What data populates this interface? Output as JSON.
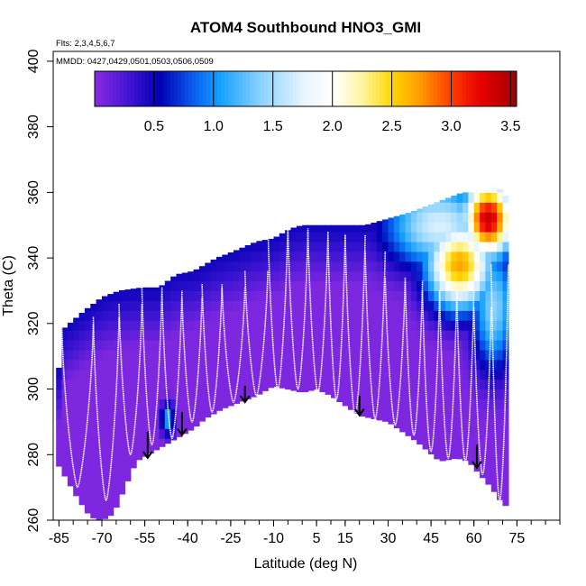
{
  "chart_data": {
    "type": "heatmap",
    "title": "ATOM4 Southbound HNO3_GMI",
    "subtitle_flights": "Flts: 2,3,4,5,6,7",
    "subtitle_dates": "MMDD: 0427,0429,0501,0503,0506,0509",
    "xlabel": "Latitude (deg N)",
    "ylabel": "Theta (C)",
    "xlim": [
      -87,
      90
    ],
    "ylim": [
      260,
      403
    ],
    "x_ticks": [
      -85,
      -70,
      -55,
      -40,
      -25,
      -10,
      5,
      15,
      30,
      45,
      60,
      75
    ],
    "x_tick_labels": [
      "-85",
      "-70",
      "-55",
      "-40",
      "-25",
      "-10",
      "5",
      "15",
      "30",
      "45",
      "60",
      "75"
    ],
    "x_minor_step": 5,
    "y_ticks": [
      260,
      280,
      300,
      320,
      340,
      360,
      380,
      400
    ],
    "y_tick_labels": [
      "260",
      "280",
      "300",
      "320",
      "340",
      "360",
      "380",
      "400"
    ],
    "colorbar": {
      "range": [
        0,
        3.55
      ],
      "ticks": [
        0.5,
        1.0,
        1.5,
        2.0,
        2.5,
        3.0,
        3.5
      ],
      "tick_labels": [
        "0.5",
        "1.0",
        "1.5",
        "2.0",
        "2.5",
        "3.0",
        "3.5"
      ],
      "stops": [
        {
          "v": 0.0,
          "color": "#8a2be2"
        },
        {
          "v": 0.3,
          "color": "#3c14d2"
        },
        {
          "v": 0.55,
          "color": "#0000b4"
        },
        {
          "v": 0.85,
          "color": "#0a64f0"
        },
        {
          "v": 1.05,
          "color": "#14a0ff"
        },
        {
          "v": 1.4,
          "color": "#8cd2ff"
        },
        {
          "v": 1.75,
          "color": "#e6f5ff"
        },
        {
          "v": 2.0,
          "color": "#ffffff"
        },
        {
          "v": 2.25,
          "color": "#fff5a0"
        },
        {
          "v": 2.5,
          "color": "#ffd700"
        },
        {
          "v": 2.75,
          "color": "#ff9600"
        },
        {
          "v": 3.0,
          "color": "#ff3c00"
        },
        {
          "v": 3.25,
          "color": "#e60000"
        },
        {
          "v": 3.55,
          "color": "#a00000"
        }
      ]
    },
    "top_boundary": [
      [
        -86,
        295
      ],
      [
        -84,
        318
      ],
      [
        -80,
        321
      ],
      [
        -76,
        324
      ],
      [
        -70,
        328
      ],
      [
        -64,
        330
      ],
      [
        -56,
        331
      ],
      [
        -50,
        331
      ],
      [
        -44,
        335
      ],
      [
        -38,
        336
      ],
      [
        -30,
        340
      ],
      [
        -24,
        342
      ],
      [
        -16,
        345
      ],
      [
        -10,
        346
      ],
      [
        -4,
        349
      ],
      [
        0,
        350
      ],
      [
        6,
        350
      ],
      [
        14,
        350
      ],
      [
        22,
        350
      ],
      [
        30,
        352
      ],
      [
        38,
        354
      ],
      [
        44,
        356
      ],
      [
        50,
        358
      ],
      [
        56,
        360
      ],
      [
        62,
        360
      ],
      [
        68,
        362
      ],
      [
        70,
        360
      ],
      [
        72,
        358
      ]
    ],
    "bottom_boundary": [
      [
        -86,
        278
      ],
      [
        -82,
        272
      ],
      [
        -78,
        266
      ],
      [
        -74,
        261
      ],
      [
        -70,
        260
      ],
      [
        -66,
        262
      ],
      [
        -62,
        270
      ],
      [
        -58,
        278
      ],
      [
        -54,
        280
      ],
      [
        -48,
        283
      ],
      [
        -42,
        286
      ],
      [
        -38,
        288
      ],
      [
        -34,
        291
      ],
      [
        -28,
        294
      ],
      [
        -22,
        296
      ],
      [
        -16,
        298
      ],
      [
        -10,
        301
      ],
      [
        -5,
        300
      ],
      [
        0,
        299
      ],
      [
        5,
        300
      ],
      [
        10,
        298
      ],
      [
        15,
        295
      ],
      [
        20,
        292
      ],
      [
        25,
        291
      ],
      [
        30,
        290
      ],
      [
        35,
        287
      ],
      [
        40,
        284
      ],
      [
        44,
        281
      ],
      [
        48,
        278
      ],
      [
        54,
        279
      ],
      [
        58,
        278
      ],
      [
        62,
        274
      ],
      [
        66,
        270
      ],
      [
        70,
        265
      ],
      [
        72,
        264
      ]
    ],
    "field_features": [
      {
        "lat": 65,
        "theta": 352,
        "value": 3.4,
        "lat_radius": 9,
        "theta_radius": 12
      },
      {
        "lat": 55,
        "theta": 338,
        "value": 2.7,
        "lat_radius": 12,
        "theta_radius": 14
      },
      {
        "lat": 48,
        "theta": 350,
        "value": 1.7,
        "lat_radius": 20,
        "theta_radius": 14
      },
      {
        "lat": 67,
        "theta": 325,
        "value": 1.4,
        "lat_radius": 8,
        "theta_radius": 20
      },
      {
        "lat": -47,
        "theta": 291,
        "value": 1.1,
        "lat_radius": 2.5,
        "theta_radius": 5
      }
    ],
    "flight_profiles": [
      {
        "lat_start": -84,
        "lat_end": -73,
        "theta_top": 320,
        "theta_bottom": 270
      },
      {
        "lat_start": -73,
        "lat_end": -64,
        "theta_top": 322,
        "theta_bottom": 266
      },
      {
        "lat_start": -64,
        "lat_end": -56,
        "theta_top": 326,
        "theta_bottom": 280
      },
      {
        "lat_start": -56,
        "lat_end": -49,
        "theta_top": 331,
        "theta_bottom": 283
      },
      {
        "lat_start": -49,
        "lat_end": -42,
        "theta_top": 330,
        "theta_bottom": 285
      },
      {
        "lat_start": -42,
        "lat_end": -35,
        "theta_top": 328,
        "theta_bottom": 290
      },
      {
        "lat_start": -35,
        "lat_end": -28,
        "theta_top": 332,
        "theta_bottom": 293
      },
      {
        "lat_start": -28,
        "lat_end": -20,
        "theta_top": 331,
        "theta_bottom": 296
      },
      {
        "lat_start": -20,
        "lat_end": -12,
        "theta_top": 336,
        "theta_bottom": 298
      },
      {
        "lat_start": -12,
        "lat_end": -5,
        "theta_top": 351,
        "theta_bottom": 300
      },
      {
        "lat_start": -5,
        "lat_end": 2,
        "theta_top": 349,
        "theta_bottom": 300
      },
      {
        "lat_start": 2,
        "lat_end": 9,
        "theta_top": 348,
        "theta_bottom": 299
      },
      {
        "lat_start": 9,
        "lat_end": 15,
        "theta_top": 347,
        "theta_bottom": 297
      },
      {
        "lat_start": 15,
        "lat_end": 22,
        "theta_top": 347,
        "theta_bottom": 292
      },
      {
        "lat_start": 22,
        "lat_end": 29,
        "theta_top": 342,
        "theta_bottom": 291
      },
      {
        "lat_start": 29,
        "lat_end": 36,
        "theta_top": 334,
        "theta_bottom": 289
      },
      {
        "lat_start": 36,
        "lat_end": 42,
        "theta_top": 333,
        "theta_bottom": 286
      },
      {
        "lat_start": 42,
        "lat_end": 48,
        "theta_top": 330,
        "theta_bottom": 281
      },
      {
        "lat_start": 48,
        "lat_end": 54,
        "theta_top": 330,
        "theta_bottom": 279
      },
      {
        "lat_start": 54,
        "lat_end": 60,
        "theta_top": 330,
        "theta_bottom": 278
      },
      {
        "lat_start": 60,
        "lat_end": 66,
        "theta_top": 325,
        "theta_bottom": 274
      },
      {
        "lat_start": 66,
        "lat_end": 72,
        "theta_top": 338,
        "theta_bottom": 266
      }
    ],
    "arrows": [
      {
        "lat": -54,
        "theta_top": 287,
        "theta_bottom": 279
      },
      {
        "lat": -42,
        "theta_top": 293,
        "theta_bottom": 286
      },
      {
        "lat": -20,
        "theta_top": 301,
        "theta_bottom": 296
      },
      {
        "lat": 20,
        "theta_top": 298,
        "theta_bottom": 292
      },
      {
        "lat": 61,
        "theta_top": 283,
        "theta_bottom": 276
      }
    ]
  }
}
